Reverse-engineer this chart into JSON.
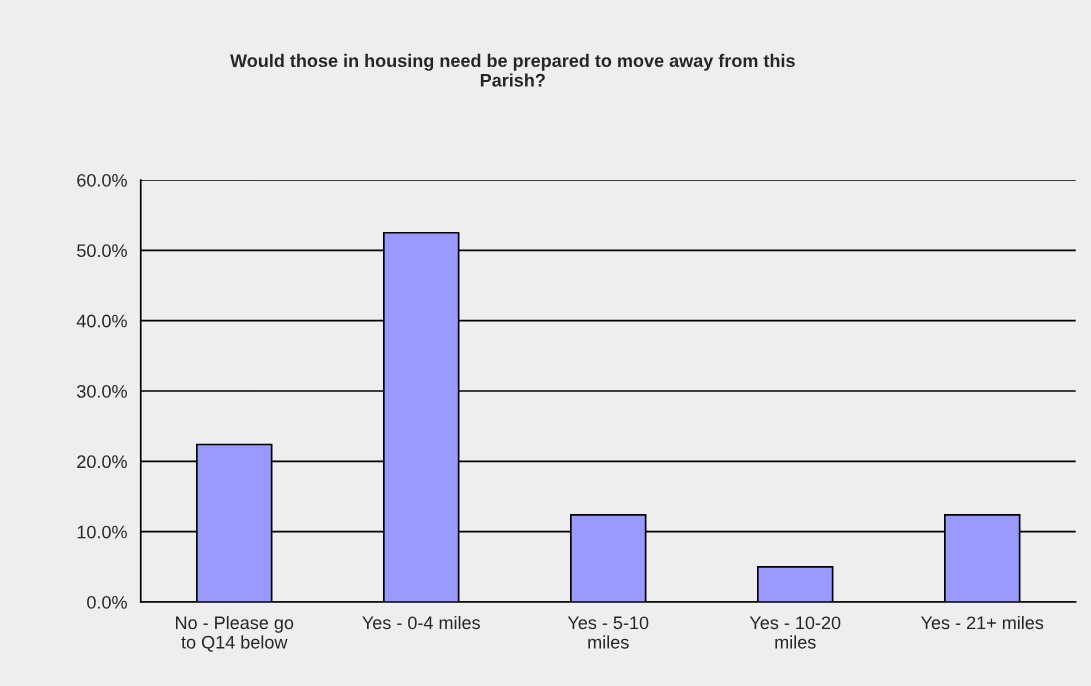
{
  "chart_data": {
    "type": "bar",
    "title": "Would those in housing need be prepared to move away from this\nParish?",
    "categories": [
      "No - Please go\nto Q14 below",
      "Yes - 0-4 miles",
      "Yes - 5-10\nmiles",
      "Yes - 10-20\nmiles",
      "Yes - 21+ miles"
    ],
    "values": [
      22.4,
      52.5,
      12.4,
      5.0,
      12.4
    ],
    "color": "#9999ff",
    "ylim": [
      0,
      60
    ],
    "yticks": [
      {
        "value": 0,
        "label": "0.0%"
      },
      {
        "value": 10,
        "label": "10.0%"
      },
      {
        "value": 20,
        "label": "20.0%"
      },
      {
        "value": 30,
        "label": "30.0%"
      },
      {
        "value": 40,
        "label": "40.0%"
      },
      {
        "value": 50,
        "label": "50.0%"
      },
      {
        "value": 60,
        "label": "60.0%"
      }
    ],
    "grid": "y",
    "legend": false
  }
}
